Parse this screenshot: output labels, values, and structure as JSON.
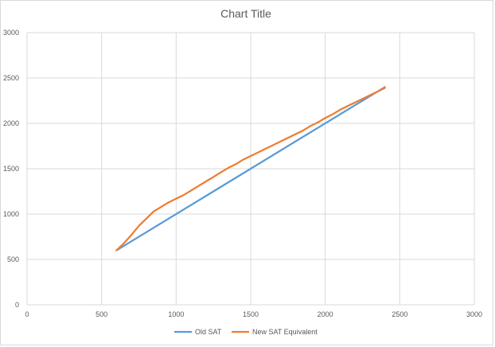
{
  "chart_data": {
    "type": "line",
    "title": "Chart Title",
    "xlabel": "",
    "ylabel": "",
    "xlim": [
      0,
      3000
    ],
    "ylim": [
      0,
      3000
    ],
    "x_ticks": [
      "0",
      "500",
      "1000",
      "1500",
      "2000",
      "2500",
      "3000"
    ],
    "y_ticks": [
      "0",
      "500",
      "1000",
      "1500",
      "2000",
      "2500",
      "3000"
    ],
    "grid": true,
    "legend_position": "bottom",
    "series": [
      {
        "name": "Old SAT",
        "color": "#5b9bd5",
        "x": [
          600,
          2400
        ],
        "y": [
          600,
          2400
        ]
      },
      {
        "name": "New SAT Equivalent",
        "color": "#ed7d31",
        "x": [
          600,
          650,
          700,
          750,
          800,
          850,
          900,
          950,
          1000,
          1050,
          1100,
          1150,
          1200,
          1250,
          1300,
          1350,
          1400,
          1450,
          1500,
          1550,
          1600,
          1650,
          1700,
          1750,
          1800,
          1850,
          1900,
          1950,
          2000,
          2050,
          2100,
          2150,
          2200,
          2250,
          2300,
          2350,
          2400
        ],
        "y": [
          600,
          680,
          770,
          870,
          950,
          1030,
          1080,
          1130,
          1170,
          1210,
          1260,
          1310,
          1360,
          1410,
          1460,
          1510,
          1550,
          1600,
          1640,
          1680,
          1720,
          1760,
          1800,
          1840,
          1880,
          1920,
          1970,
          2010,
          2060,
          2100,
          2150,
          2190,
          2230,
          2270,
          2310,
          2350,
          2390
        ]
      }
    ]
  }
}
